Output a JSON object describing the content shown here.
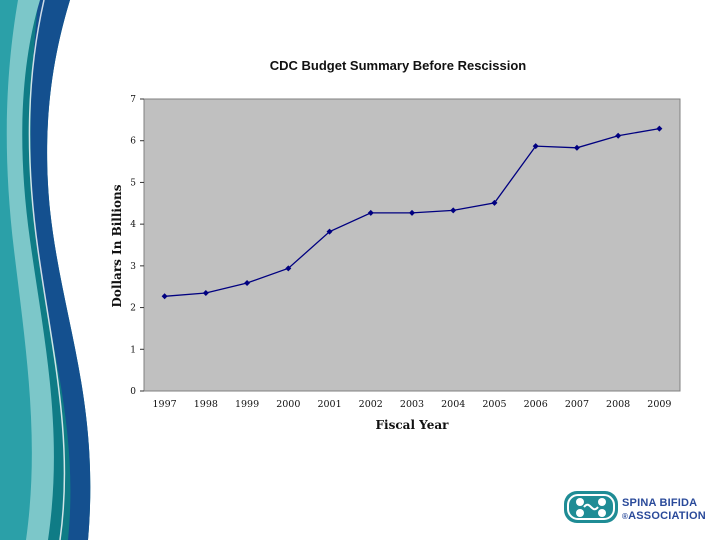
{
  "colors": {
    "teal_dark": "#0f7c86",
    "teal_mid": "#2ba0a8",
    "teal_light": "#8fd0d2",
    "navy": "#14508f",
    "plot_bg": "#c0c0c0",
    "line": "#000080"
  },
  "logo": {
    "line1": "SPINA BIFIDA",
    "line2": "ASSOCIATION",
    "mark": "®",
    "icon": "sba-logo-icon"
  },
  "chart_data": {
    "type": "line",
    "title": "CDC Budget Summary Before Rescission",
    "xlabel": "Fiscal Year",
    "ylabel": "Dollars In Billions",
    "ylim": [
      0,
      7
    ],
    "yticks": [
      0,
      1,
      2,
      3,
      4,
      5,
      6,
      7
    ],
    "grid": false,
    "categories": [
      "1997",
      "1998",
      "1999",
      "2000",
      "2001",
      "2002",
      "2003",
      "2004",
      "2005",
      "2006",
      "2007",
      "2008",
      "2009"
    ],
    "series": [
      {
        "name": "CDC Budget",
        "values": [
          2.27,
          2.35,
          2.59,
          2.94,
          3.82,
          4.27,
          4.27,
          4.33,
          4.51,
          5.87,
          5.83,
          6.12,
          6.29
        ]
      }
    ]
  }
}
